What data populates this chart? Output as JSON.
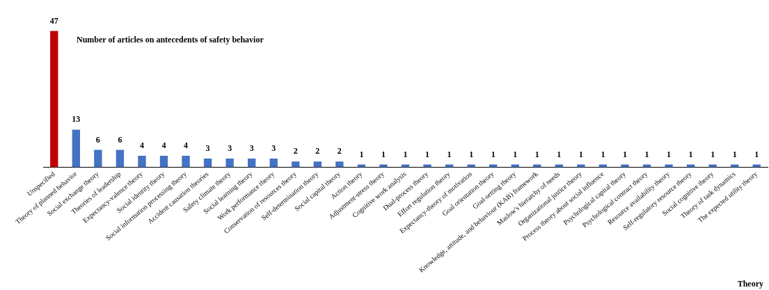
{
  "chart_data": {
    "type": "bar",
    "title": "Number of articles on antecedents of safety behavior",
    "xlabel": "Theory",
    "categories": [
      "Unspecified",
      "Theory of planned behavior",
      "Social exchange theory",
      "Theories of leadership",
      "Expectancy-valence theory",
      "Social identity theory",
      "Social information processing theory",
      "Accident causation theories",
      "Safety climate theory",
      "Social learning theory",
      "Work performance theory",
      "Conservation of resources theory",
      "Self-determination theory",
      "Social capital theory",
      "Action theory",
      "Adjustment-stress theory",
      "Cognitive work analysis",
      "Dual-process theory",
      "Effort regulation theory",
      "Expectancy-theory of motivation",
      "Goal orientation theory",
      "Goal-setting theory",
      "Knowledge, attitude, and behaviour (KAB) framework",
      "Maslow's hierarchy of needs",
      "Organizational justice theory",
      "Process theory about social influence",
      "Psychological capital theory",
      "Psychological contract theory",
      "Resource availability theory",
      "Self-regulatory resource theory",
      "Social cognitive theory",
      "Theory of task dynamics",
      "The expected utility theory"
    ],
    "values": [
      47,
      13,
      6,
      6,
      4,
      4,
      4,
      3,
      3,
      3,
      3,
      2,
      2,
      2,
      1,
      1,
      1,
      1,
      1,
      1,
      1,
      1,
      1,
      1,
      1,
      1,
      1,
      1,
      1,
      1,
      1,
      1,
      1
    ],
    "colors": [
      "#c00000",
      "#4472c4",
      "#4472c4",
      "#4472c4",
      "#4472c4",
      "#4472c4",
      "#4472c4",
      "#4472c4",
      "#4472c4",
      "#4472c4",
      "#4472c4",
      "#4472c4",
      "#4472c4",
      "#4472c4",
      "#4472c4",
      "#4472c4",
      "#4472c4",
      "#4472c4",
      "#4472c4",
      "#4472c4",
      "#4472c4",
      "#4472c4",
      "#4472c4",
      "#4472c4",
      "#4472c4",
      "#4472c4",
      "#4472c4",
      "#4472c4",
      "#4472c4",
      "#4472c4",
      "#4472c4",
      "#4472c4",
      "#4472c4"
    ],
    "data_labels": true,
    "grid": false,
    "legend": false
  }
}
